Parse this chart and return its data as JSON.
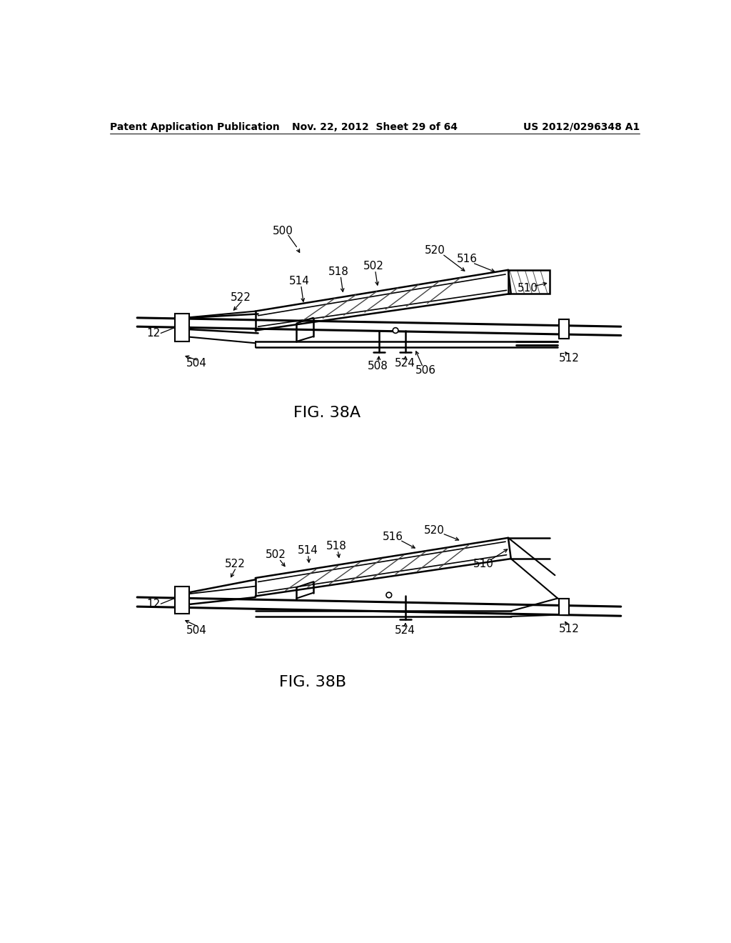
{
  "bg_color": "#ffffff",
  "text_color": "#000000",
  "line_color": "#000000",
  "header_left": "Patent Application Publication",
  "header_mid": "Nov. 22, 2012  Sheet 29 of 64",
  "header_right": "US 2012/0296348 A1",
  "fig_a_label": "FIG. 38A",
  "fig_b_label": "FIG. 38B",
  "header_fontsize": 10,
  "annotation_fontsize": 11,
  "fig_label_fontsize": 16
}
